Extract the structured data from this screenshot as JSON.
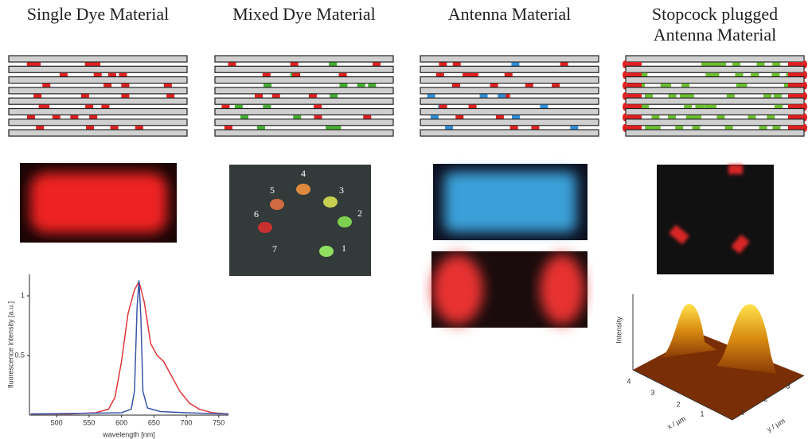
{
  "panels": [
    {
      "title_lines": [
        "Single Dye Material"
      ]
    },
    {
      "title_lines": [
        "Mixed Dye Material"
      ]
    },
    {
      "title_lines": [
        "Antenna Material"
      ]
    },
    {
      "title_lines": [
        "Stopcock plugged",
        "Antenna Material"
      ]
    }
  ],
  "mixed_dye_spots": [
    "1",
    "2",
    "3",
    "4",
    "5",
    "6",
    "7"
  ],
  "chart_data": {
    "type": "line",
    "x_label": "wavelength [nm]",
    "y_label": "fluorescence intensity [a.u.]",
    "xlim": [
      458,
      765
    ],
    "ylim": [
      0,
      1.18
    ],
    "xticks": [
      500,
      550,
      600,
      650,
      700,
      750
    ],
    "yticks": [
      0.5,
      1
    ],
    "series": [
      {
        "name": null,
        "color": "#e0363a",
        "x": [
          460,
          520,
          560,
          580,
          590,
          600,
          610,
          620,
          627,
          635,
          645,
          655,
          665,
          675,
          690,
          705,
          720,
          740,
          765
        ],
        "values": [
          0.01,
          0.01,
          0.02,
          0.05,
          0.15,
          0.45,
          0.85,
          1.05,
          1.12,
          0.95,
          0.6,
          0.5,
          0.45,
          0.35,
          0.2,
          0.1,
          0.05,
          0.02,
          0.01
        ]
      },
      {
        "name": null,
        "color": "#3a55a8",
        "x": [
          460,
          600,
          615,
          620,
          624,
          627,
          630,
          633,
          640,
          660,
          700,
          765
        ],
        "values": [
          0.01,
          0.02,
          0.05,
          0.2,
          0.9,
          1.13,
          0.8,
          0.2,
          0.06,
          0.03,
          0.02,
          0.01
        ]
      }
    ]
  },
  "surface_plot": {
    "z_label": "Intensity",
    "x_label": "x / µm",
    "y_label": "y / µm",
    "x_ticks": [
      "4",
      "3",
      "2",
      "1"
    ],
    "y_ticks": [
      "1",
      "2",
      "3"
    ]
  }
}
